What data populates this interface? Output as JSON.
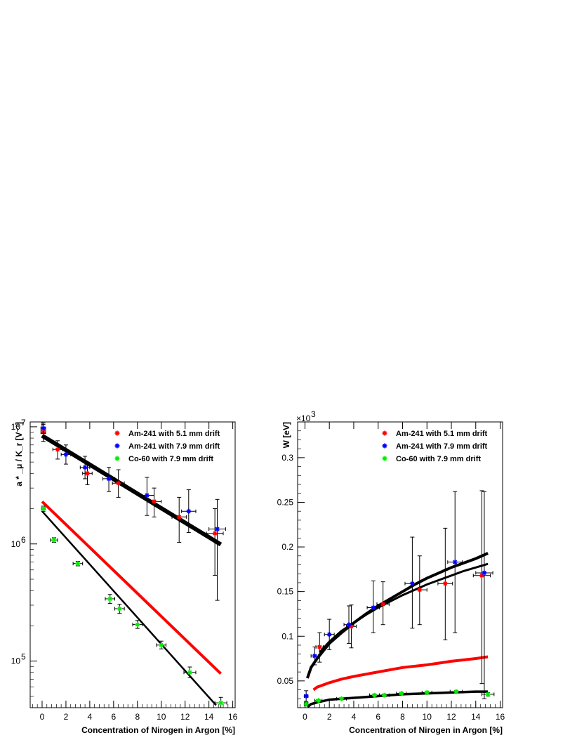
{
  "chart_data": [
    {
      "type": "scatter",
      "yscale": "log",
      "xlabel": "Concentration of Nirogen in Argon [%]",
      "ylabel": "a * _μ / K_r [V⁻¹]",
      "xlim": [
        -1,
        16.2
      ],
      "ylim": [
        40000,
        11000000
      ],
      "x_ticks": [
        0,
        2,
        4,
        6,
        8,
        10,
        12,
        14,
        16
      ],
      "y_ticks": [
        {
          "value": 100000,
          "label": "10",
          "exp": "5"
        },
        {
          "value": 1000000,
          "label": "10",
          "exp": "6"
        },
        {
          "value": 10000000,
          "label": "10",
          "exp": "7"
        }
      ],
      "legend_position": "top-right",
      "series": [
        {
          "name": "Am-241 with 5.1 mm drift",
          "color": "#ff0000",
          "points": [
            {
              "x": 0.1,
              "y": 9000000,
              "ylo": 7500000,
              "yhi": 10500000,
              "xerr": 0.2
            },
            {
              "x": 1.3,
              "y": 6400000,
              "ylo": 5300000,
              "yhi": 7600000,
              "xerr": 0.4
            },
            {
              "x": 3.8,
              "y": 4000000,
              "ylo": 3200000,
              "yhi": 5000000,
              "xerr": 0.4
            },
            {
              "x": 6.4,
              "y": 3300000,
              "ylo": 2500000,
              "yhi": 4300000,
              "xerr": 0.5
            },
            {
              "x": 9.4,
              "y": 2300000,
              "ylo": 1700000,
              "yhi": 3000000,
              "xerr": 0.6
            },
            {
              "x": 11.5,
              "y": 1700000,
              "ylo": 1030000,
              "yhi": 2500000,
              "xerr": 0.6
            },
            {
              "x": 14.5,
              "y": 1230000,
              "ylo": 540000,
              "yhi": 2000000,
              "xerr": 0.7
            }
          ]
        },
        {
          "name": "Am-241 with 7.9 mm drift",
          "color": "#0000ff",
          "points": [
            {
              "x": 0.1,
              "y": 9700000,
              "ylo": 8800000,
              "yhi": 10800000,
              "xerr": 0.2
            },
            {
              "x": 2.0,
              "y": 5800000,
              "ylo": 4800000,
              "yhi": 7000000,
              "xerr": 0.4
            },
            {
              "x": 3.6,
              "y": 4500000,
              "ylo": 3600000,
              "yhi": 5600000,
              "xerr": 0.4
            },
            {
              "x": 5.6,
              "y": 3600000,
              "ylo": 2800000,
              "yhi": 4500000,
              "xerr": 0.5
            },
            {
              "x": 8.8,
              "y": 2600000,
              "ylo": 1750000,
              "yhi": 3700000,
              "xerr": 0.6
            },
            {
              "x": 12.3,
              "y": 1900000,
              "ylo": 1250000,
              "yhi": 2900000,
              "xerr": 0.6
            },
            {
              "x": 14.7,
              "y": 1340000,
              "ylo": 330000,
              "yhi": 2400000,
              "xerr": 0.7
            }
          ]
        },
        {
          "name": "Co-60 with 7.9 mm drift",
          "color": "#00ee00",
          "points": [
            {
              "x": 0.1,
              "y": 2000000,
              "ylo": 1900000,
              "yhi": 2100000,
              "xerr": 0.15
            },
            {
              "x": 1.0,
              "y": 1080000,
              "ylo": 1030000,
              "yhi": 1130000,
              "xerr": 0.3
            },
            {
              "x": 3.0,
              "y": 680000,
              "ylo": 650000,
              "yhi": 710000,
              "xerr": 0.4
            },
            {
              "x": 5.7,
              "y": 340000,
              "ylo": 310000,
              "yhi": 370000,
              "xerr": 0.4
            },
            {
              "x": 6.5,
              "y": 280000,
              "ylo": 255000,
              "yhi": 305000,
              "xerr": 0.4
            },
            {
              "x": 8.0,
              "y": 205000,
              "ylo": 190000,
              "yhi": 222000,
              "xerr": 0.4
            },
            {
              "x": 10.0,
              "y": 137000,
              "ylo": 127000,
              "yhi": 148000,
              "xerr": 0.4
            },
            {
              "x": 12.4,
              "y": 80000,
              "ylo": 72000,
              "yhi": 89000,
              "xerr": 0.5
            },
            {
              "x": 15.0,
              "y": 44000,
              "ylo": 40000,
              "yhi": 49000,
              "xerr": 0.5
            }
          ]
        }
      ],
      "fit_lines": [
        {
          "color": "#000000",
          "width": 6,
          "points": [
            [
              0,
              8400000
            ],
            [
              15,
              990000
            ]
          ]
        },
        {
          "color": "#ff0000",
          "width": 4,
          "points": [
            [
              0,
              2300000
            ],
            [
              15,
              78000
            ]
          ]
        },
        {
          "color": "#000000",
          "width": 2.5,
          "points": [
            [
              0,
              1900000
            ],
            [
              14.6,
              42000
            ]
          ]
        }
      ]
    },
    {
      "type": "scatter",
      "xlabel": "Concentration of Nirogen in Argon [%]",
      "ylabel": "W [eV]",
      "multiplier": "×10",
      "multiplier_exp": "3",
      "xlim": [
        -0.6,
        16.2
      ],
      "ylim": [
        0.02,
        0.34
      ],
      "x_ticks": [
        0,
        2,
        4,
        6,
        8,
        10,
        12,
        14,
        16
      ],
      "y_ticks": [
        {
          "value": 0.05,
          "label": "0.05"
        },
        {
          "value": 0.1,
          "label": "0.1"
        },
        {
          "value": 0.15,
          "label": "0.15"
        },
        {
          "value": 0.2,
          "label": "0.2"
        },
        {
          "value": 0.25,
          "label": "0.25"
        },
        {
          "value": 0.3,
          "label": "0.3"
        }
      ],
      "legend_position": "top-right",
      "series": [
        {
          "name": "Am-241 with 5.1 mm drift",
          "color": "#ff0000",
          "points": [
            {
              "x": 1.2,
              "y": 0.088,
              "ylo": 0.071,
              "yhi": 0.104,
              "xerr": 0.3
            },
            {
              "x": 3.8,
              "y": 0.111,
              "ylo": 0.087,
              "yhi": 0.135,
              "xerr": 0.4
            },
            {
              "x": 6.4,
              "y": 0.136,
              "ylo": 0.113,
              "yhi": 0.161,
              "xerr": 0.5
            },
            {
              "x": 9.4,
              "y": 0.152,
              "ylo": 0.113,
              "yhi": 0.19,
              "xerr": 0.6
            },
            {
              "x": 11.5,
              "y": 0.159,
              "ylo": 0.096,
              "yhi": 0.221,
              "xerr": 0.6
            },
            {
              "x": 14.5,
              "y": 0.168,
              "ylo": 0.047,
              "yhi": 0.263,
              "xerr": 0.7
            }
          ]
        },
        {
          "name": "Am-241 with 7.9 mm drift",
          "color": "#0000ff",
          "points": [
            {
              "x": 0.1,
              "y": 0.033,
              "ylo": 0.027,
              "yhi": 0.039,
              "xerr": 0.15
            },
            {
              "x": 0.8,
              "y": 0.078,
              "ylo": 0.068,
              "yhi": 0.088,
              "xerr": 0.3
            },
            {
              "x": 2.0,
              "y": 0.102,
              "ylo": 0.085,
              "yhi": 0.119,
              "xerr": 0.4
            },
            {
              "x": 3.6,
              "y": 0.113,
              "ylo": 0.092,
              "yhi": 0.134,
              "xerr": 0.4
            },
            {
              "x": 5.6,
              "y": 0.132,
              "ylo": 0.104,
              "yhi": 0.162,
              "xerr": 0.5
            },
            {
              "x": 8.8,
              "y": 0.159,
              "ylo": 0.109,
              "yhi": 0.211,
              "xerr": 0.6
            },
            {
              "x": 12.3,
              "y": 0.183,
              "ylo": 0.104,
              "yhi": 0.262,
              "xerr": 0.6
            },
            {
              "x": 14.7,
              "y": 0.171,
              "ylo": 0.03,
              "yhi": 0.262,
              "xerr": 0.7
            }
          ]
        },
        {
          "name": "Co-60 with 7.9 mm drift",
          "color": "#00ee00",
          "points": [
            {
              "x": 0.1,
              "y": 0.024,
              "ylo": 0.022,
              "yhi": 0.026,
              "xerr": 0.15
            },
            {
              "x": 1.1,
              "y": 0.028,
              "ylo": 0.027,
              "yhi": 0.029,
              "xerr": 0.3
            },
            {
              "x": 3.0,
              "y": 0.03,
              "ylo": 0.029,
              "yhi": 0.031,
              "xerr": 0.4
            },
            {
              "x": 5.7,
              "y": 0.034,
              "ylo": 0.033,
              "yhi": 0.035,
              "xerr": 0.4
            },
            {
              "x": 6.5,
              "y": 0.034,
              "ylo": 0.033,
              "yhi": 0.035,
              "xerr": 0.4
            },
            {
              "x": 7.9,
              "y": 0.036,
              "ylo": 0.035,
              "yhi": 0.037,
              "xerr": 0.4
            },
            {
              "x": 10.0,
              "y": 0.037,
              "ylo": 0.036,
              "yhi": 0.038,
              "xerr": 0.4
            },
            {
              "x": 12.4,
              "y": 0.038,
              "ylo": 0.037,
              "yhi": 0.039,
              "xerr": 0.5
            },
            {
              "x": 15.0,
              "y": 0.035,
              "ylo": 0.033,
              "yhi": 0.037,
              "xerr": 0.5
            }
          ]
        }
      ],
      "fit_lines": [
        {
          "color": "#000000",
          "width": 4,
          "points": [
            [
              0.2,
              0.053
            ],
            [
              0.5,
              0.065
            ],
            [
              1,
              0.075
            ],
            [
              2,
              0.092
            ],
            [
              3,
              0.104
            ],
            [
              4,
              0.115
            ],
            [
              5,
              0.125
            ],
            [
              6,
              0.134
            ],
            [
              7,
              0.142
            ],
            [
              8,
              0.15
            ],
            [
              9,
              0.158
            ],
            [
              10,
              0.165
            ],
            [
              11,
              0.171
            ],
            [
              12,
              0.177
            ],
            [
              13,
              0.182
            ],
            [
              14,
              0.187
            ],
            [
              15,
              0.193
            ]
          ]
        },
        {
          "color": "#000000",
          "width": 3,
          "points": [
            [
              1.2,
              0.082
            ],
            [
              2,
              0.094
            ],
            [
              3,
              0.106
            ],
            [
              4,
              0.115
            ],
            [
              5,
              0.124
            ],
            [
              6,
              0.132
            ],
            [
              7,
              0.139
            ],
            [
              8,
              0.146
            ],
            [
              9,
              0.152
            ],
            [
              10,
              0.158
            ],
            [
              11,
              0.163
            ],
            [
              12,
              0.168
            ],
            [
              13,
              0.173
            ],
            [
              14,
              0.177
            ],
            [
              15,
              0.181
            ]
          ]
        },
        {
          "color": "#ff0000",
          "width": 4,
          "points": [
            [
              0.7,
              0.04
            ],
            [
              1,
              0.043
            ],
            [
              2,
              0.048
            ],
            [
              3,
              0.052
            ],
            [
              4,
              0.055
            ],
            [
              6,
              0.06
            ],
            [
              8,
              0.065
            ],
            [
              10,
              0.068
            ],
            [
              12,
              0.072
            ],
            [
              14,
              0.075
            ],
            [
              15,
              0.077
            ]
          ]
        },
        {
          "color": "#000000",
          "width": 3.5,
          "points": [
            [
              0.2,
              0.021
            ],
            [
              0.5,
              0.024
            ],
            [
              1,
              0.026
            ],
            [
              2,
              0.029
            ],
            [
              3,
              0.03
            ],
            [
              4,
              0.031
            ],
            [
              6,
              0.033
            ],
            [
              8,
              0.035
            ],
            [
              10,
              0.036
            ],
            [
              12,
              0.037
            ],
            [
              14,
              0.038
            ],
            [
              15,
              0.038
            ]
          ]
        }
      ]
    }
  ]
}
